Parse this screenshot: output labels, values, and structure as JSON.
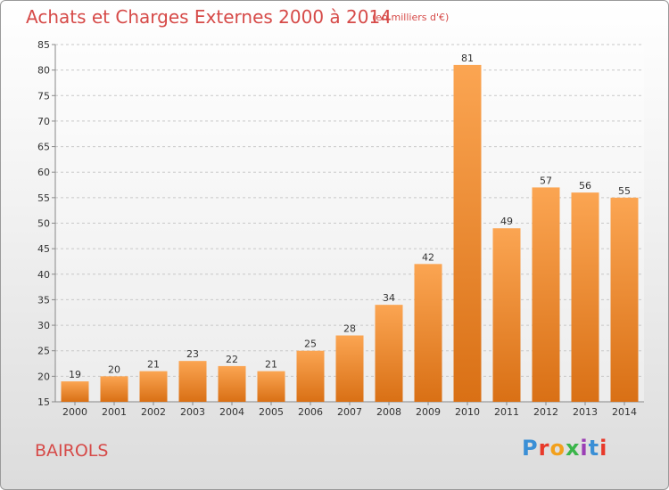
{
  "title": "Achats et Charges Externes 2000 à 2014",
  "subtitle": "(en milliers d'€)",
  "commune": "BAIROLS",
  "logo_text": "Proxiti",
  "logo_colors": [
    "#3a8fd6",
    "#e8392a",
    "#f2a01c",
    "#3ab54a",
    "#9b3fb5",
    "#3a8fd6",
    "#e8392a"
  ],
  "colors": {
    "bar_top": "#fba552",
    "bar_bottom": "#d97015",
    "text": "#d64a48"
  },
  "chart_data": {
    "type": "bar",
    "categories": [
      "2000",
      "2001",
      "2002",
      "2003",
      "2004",
      "2005",
      "2006",
      "2007",
      "2008",
      "2009",
      "2010",
      "2011",
      "2012",
      "2013",
      "2014"
    ],
    "values": [
      19,
      20,
      21,
      23,
      22,
      21,
      25,
      28,
      34,
      42,
      81,
      49,
      57,
      56,
      55
    ],
    "title": "Achats et Charges Externes 2000 à 2014",
    "xlabel": "",
    "ylabel": "",
    "ylim": [
      15,
      85
    ],
    "yticks": [
      15,
      20,
      25,
      30,
      35,
      40,
      45,
      50,
      55,
      60,
      65,
      70,
      75,
      80,
      85
    ],
    "grid": true,
    "data_labels": true
  }
}
